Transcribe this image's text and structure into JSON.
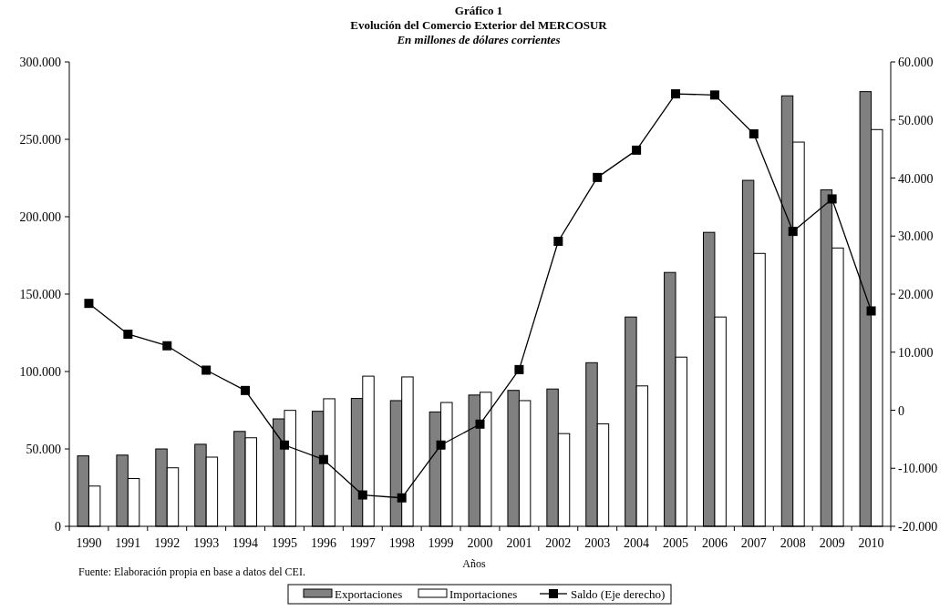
{
  "chart_data": {
    "type": "bar",
    "title": "Gráfico 1",
    "subtitle": "Evolución del Comercio Exterior del MERCOSUR\nEn millones de dólares corrientes",
    "xlabel": "Años",
    "annotations": [
      "Fuente: Elaboración propia en base a datos del CEI."
    ],
    "categories": [
      "1990",
      "1991",
      "1992",
      "1993",
      "1994",
      "1995",
      "1996",
      "1997",
      "1998",
      "1999",
      "2000",
      "2001",
      "2002",
      "2003",
      "2004",
      "2005",
      "2006",
      "2007",
      "2008",
      "2009",
      "2010"
    ],
    "series": [
      {
        "name": "Exportaciones",
        "color": "#808080",
        "values": [
          45500,
          46000,
          50000,
          53000,
          61300,
          69400,
          74300,
          82600,
          81200,
          73900,
          84800,
          87800,
          88700,
          105700,
          135200,
          164000,
          189900,
          223500,
          278100,
          217400,
          280800
        ]
      },
      {
        "name": "Importaciones",
        "color": "#ffffff",
        "values": [
          26000,
          30900,
          37800,
          44700,
          57200,
          74900,
          82400,
          97000,
          96500,
          80000,
          86600,
          81200,
          59900,
          66200,
          90700,
          109300,
          135200,
          176300,
          248200,
          179800,
          256300
        ]
      },
      {
        "name": "Saldo (Eje derecho)",
        "type": "line",
        "axis": "y2",
        "color": "#000000",
        "marker": "square",
        "values": [
          18400,
          13100,
          11100,
          6900,
          3400,
          -6000,
          -8500,
          -14600,
          -15100,
          -6000,
          -2400,
          7000,
          29100,
          40100,
          44800,
          54500,
          54300,
          47600,
          30800,
          36400,
          17100
        ]
      }
    ],
    "ylim": [
      0,
      300000
    ],
    "yticks": [
      {
        "value": 0,
        "label": "0"
      },
      {
        "value": 50000,
        "label": "50.000"
      },
      {
        "value": 100000,
        "label": "100.000"
      },
      {
        "value": 150000,
        "label": "150.000"
      },
      {
        "value": 200000,
        "label": "200.000"
      },
      {
        "value": 250000,
        "label": "250.000"
      },
      {
        "value": 300000,
        "label": "300.000"
      }
    ],
    "y2lim": [
      -20000,
      60000
    ],
    "y2ticks": [
      {
        "value": -20000,
        "label": "-20.000"
      },
      {
        "value": -10000,
        "label": "-10.000"
      },
      {
        "value": 0,
        "label": "0"
      },
      {
        "value": 10000,
        "label": "10.000"
      },
      {
        "value": 20000,
        "label": "20.000"
      },
      {
        "value": 30000,
        "label": "30.000"
      },
      {
        "value": 40000,
        "label": "40.000"
      },
      {
        "value": 50000,
        "label": "50.000"
      },
      {
        "value": 60000,
        "label": "60.000"
      }
    ],
    "grid": false,
    "legend": "bottom"
  }
}
